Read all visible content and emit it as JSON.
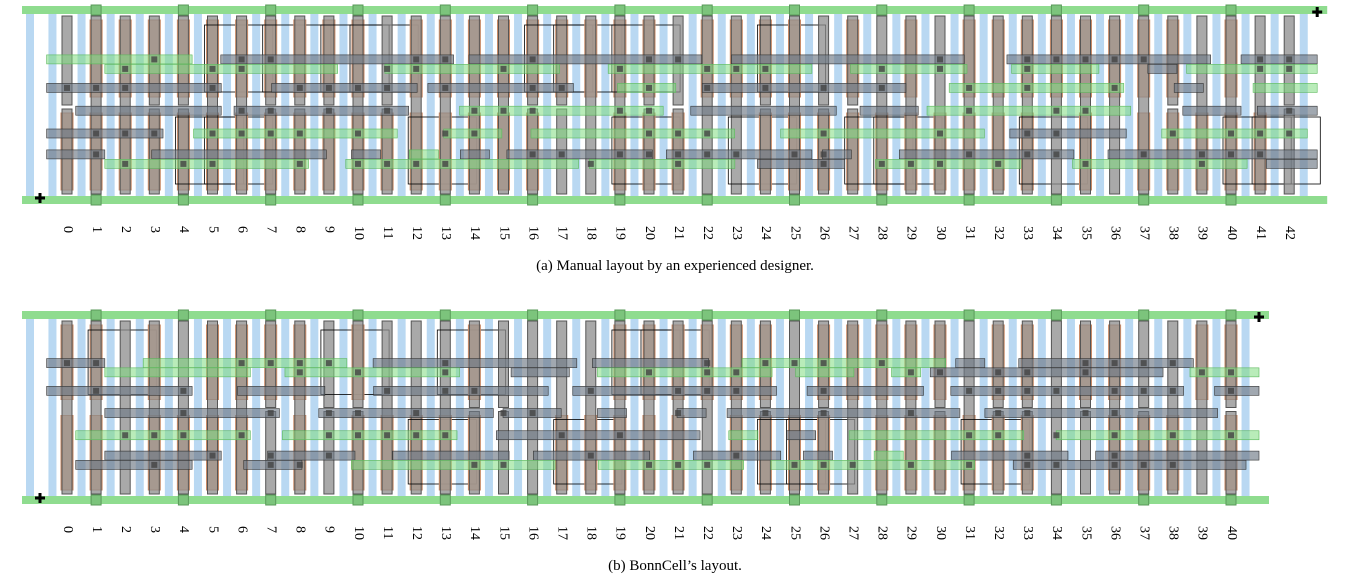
{
  "layouts": [
    {
      "columns": [
        0,
        1,
        2,
        3,
        4,
        5,
        6,
        7,
        8,
        9,
        10,
        11,
        12,
        13,
        14,
        15,
        16,
        17,
        18,
        19,
        20,
        21,
        22,
        23,
        24,
        25,
        26,
        27,
        28,
        29,
        30,
        31,
        32,
        33,
        34,
        35,
        36,
        37,
        38,
        39,
        40,
        41,
        42
      ],
      "caption": "(a) Manual layout by an experienced designer."
    },
    {
      "columns": [
        0,
        1,
        2,
        3,
        4,
        5,
        6,
        7,
        8,
        9,
        10,
        11,
        12,
        13,
        14,
        15,
        16,
        17,
        18,
        19,
        20,
        21,
        22,
        23,
        24,
        25,
        26,
        27,
        28,
        29,
        30,
        31,
        32,
        33,
        34,
        35,
        36,
        37,
        38,
        39,
        40
      ],
      "caption": "(b) BonnCell’s layout."
    }
  ]
}
